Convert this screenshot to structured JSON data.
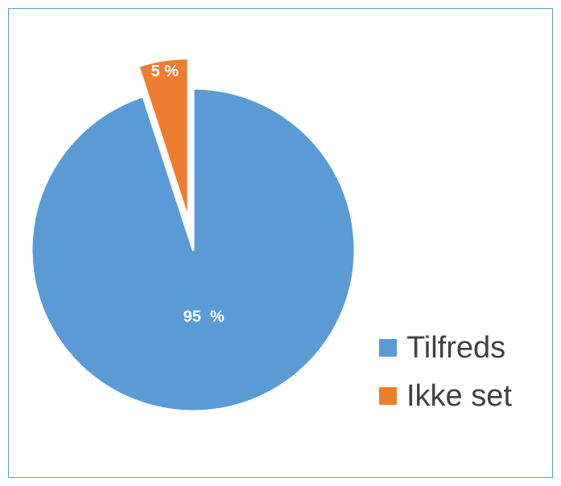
{
  "chart_data": {
    "type": "pie",
    "title": "",
    "categories": [
      "Tilfreds",
      "Ikke set"
    ],
    "values": [
      95,
      5
    ],
    "labels": [
      "95  %",
      "5 %"
    ],
    "colors": [
      "#5b9bd5",
      "#ed7d31"
    ],
    "exploded": [
      false,
      true
    ],
    "legend": {
      "position": "bottom-right",
      "entries": [
        "Tilfreds",
        "Ikke set"
      ]
    }
  }
}
